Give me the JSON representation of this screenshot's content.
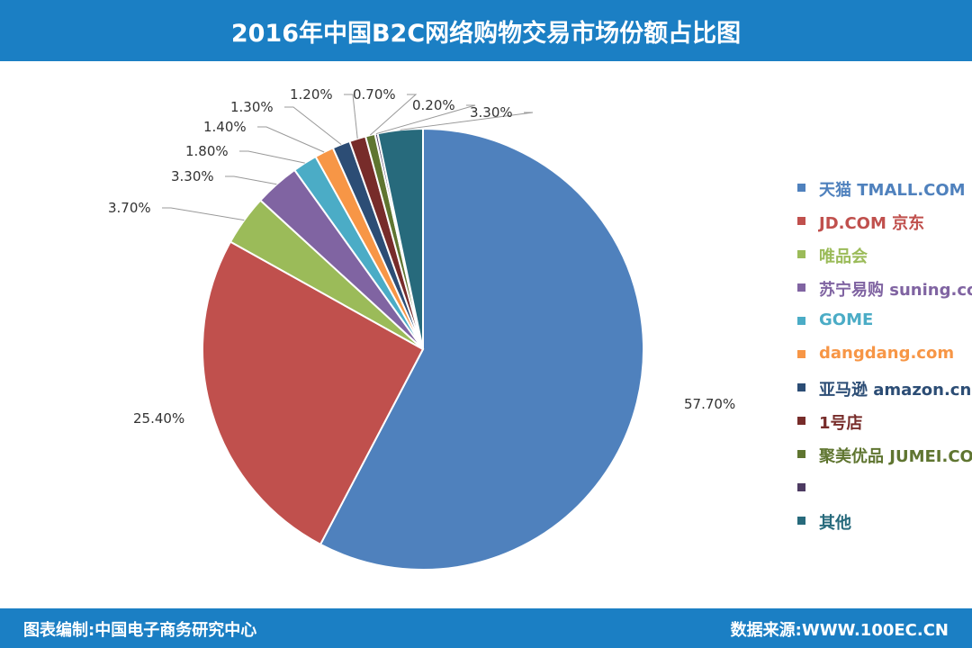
{
  "header": {
    "title": "2016年中国B2C网络购物交易市场份额占比图"
  },
  "footer": {
    "left": "图表编制:中国电子商务研究中心",
    "right": "数据来源:WWW.100EC.CN"
  },
  "chart_data": {
    "type": "pie",
    "title": "2016年中国B2C网络购物交易市场份额占比图",
    "start_angle_deg": 0,
    "direction": "clockwise",
    "legend_position": "right",
    "slices": [
      {
        "name": "天猫 TMALL.COM",
        "value": 57.7,
        "label": "57.70%",
        "color": "#4f81bd"
      },
      {
        "name": "JD.COM 京东",
        "value": 25.4,
        "label": "25.40%",
        "color": "#c0504d"
      },
      {
        "name": "唯品会",
        "value": 3.7,
        "label": "3.70%",
        "color": "#9bbb59"
      },
      {
        "name": "苏宁易购 suning.com",
        "value": 3.3,
        "label": "3.30%",
        "color": "#8064a2"
      },
      {
        "name": "GOME",
        "value": 1.8,
        "label": "1.80%",
        "color": "#4bacc6"
      },
      {
        "name": "dangdang.com",
        "value": 1.4,
        "label": "1.40%",
        "color": "#f79646"
      },
      {
        "name": "亚马逊 amazon.cn",
        "value": 1.3,
        "label": "1.30%",
        "color": "#2c4d75"
      },
      {
        "name": "1号店",
        "value": 1.2,
        "label": "1.20%",
        "color": "#772c2a"
      },
      {
        "name": "聚美优品 JUMEI.COM",
        "value": 0.7,
        "label": "0.70%",
        "color": "#5f7530"
      },
      {
        "name": "",
        "value": 0.2,
        "label": "0.20%",
        "color": "#4d3b62"
      },
      {
        "name": "其他",
        "value": 3.3,
        "label": "3.30%",
        "color": "#276a7c"
      }
    ]
  }
}
